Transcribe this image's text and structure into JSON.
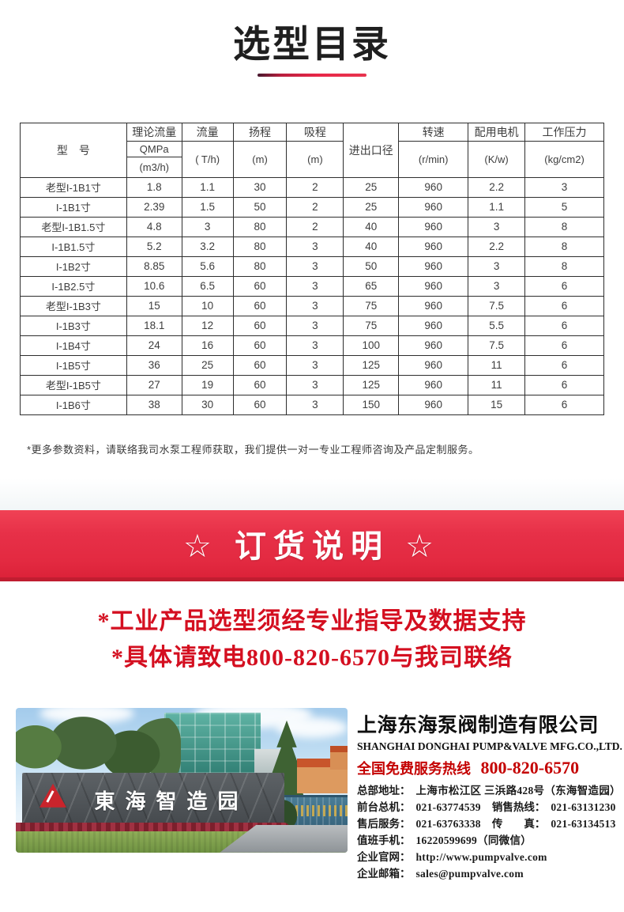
{
  "page": {
    "title": "选型目录"
  },
  "colors": {
    "banner_red": "#e32a41",
    "banner_shadow_red": "#c01d30",
    "slogan_red": "#d40f20",
    "hotline_red": "#c40000",
    "underline_red": "#e82748",
    "logo_red": "#c9242c"
  },
  "table": {
    "headers": {
      "model": "型　号",
      "theoretical_flow": "理论流量",
      "theoretical_flow_unit1": "QMPa",
      "theoretical_flow_unit2": "(m3/h)",
      "flow": "流量",
      "flow_unit": "( T/h)",
      "head": "扬程",
      "head_unit": "(m)",
      "suction": "吸程",
      "suction_unit": "(m)",
      "port_diameter": "进出口径",
      "speed": "转速",
      "speed_unit": "(r/min)",
      "motor": "配用电机",
      "motor_unit": "(K/w)",
      "pressure": "工作压力",
      "pressure_unit": "(kg/cm2)"
    },
    "rows": [
      [
        "老型I-1B1寸",
        "1.8",
        "1.1",
        "30",
        "2",
        "25",
        "960",
        "2.2",
        "3"
      ],
      [
        "I-1B1寸",
        "2.39",
        "1.5",
        "50",
        "2",
        "25",
        "960",
        "1.1",
        "5"
      ],
      [
        "老型I-1B1.5寸",
        "4.8",
        "3",
        "80",
        "2",
        "40",
        "960",
        "3",
        "8"
      ],
      [
        "I-1B1.5寸",
        "5.2",
        "3.2",
        "80",
        "3",
        "40",
        "960",
        "2.2",
        "8"
      ],
      [
        "I-1B2寸",
        "8.85",
        "5.6",
        "80",
        "3",
        "50",
        "960",
        "3",
        "8"
      ],
      [
        "I-1B2.5寸",
        "10.6",
        "6.5",
        "60",
        "3",
        "65",
        "960",
        "3",
        "6"
      ],
      [
        "老型I-1B3寸",
        "15",
        "10",
        "60",
        "3",
        "75",
        "960",
        "7.5",
        "6"
      ],
      [
        "I-1B3寸",
        "18.1",
        "12",
        "60",
        "3",
        "75",
        "960",
        "5.5",
        "6"
      ],
      [
        "I-1B4寸",
        "24",
        "16",
        "60",
        "3",
        "100",
        "960",
        "7.5",
        "6"
      ],
      [
        "I-1B5寸",
        "36",
        "25",
        "60",
        "3",
        "125",
        "960",
        "11",
        "6"
      ],
      [
        "老型I-1B5寸",
        "27",
        "19",
        "60",
        "3",
        "125",
        "960",
        "11",
        "6"
      ],
      [
        "I-1B6寸",
        "38",
        "30",
        "60",
        "3",
        "150",
        "960",
        "15",
        "6"
      ]
    ]
  },
  "note": "*更多参数资料，请联络我司水泵工程师获取，我们提供一对一专业工程师咨询及产品定制服务。",
  "banner": {
    "text": "☆ 订货说明 ☆"
  },
  "slogans": [
    "*工业产品选型须经专业指导及数据支持",
    "*具体请致电800-820-6570与我司联络"
  ],
  "photo": {
    "sign_text": "東海智造园",
    "logo": "donghai-triangle-logo"
  },
  "company": {
    "name_cn": "上海东海泵阀制造有限公司",
    "name_en": "SHANGHAI DONGHAI PUMP&VALVE MFG.CO.,LTD.",
    "hotline_label": "全国免费服务热线",
    "hotline_number": "800-820-6570",
    "contact_lines": [
      [
        [
          "总部地址：",
          "上海市松江区 三浜路428号（东海智造园）"
        ]
      ],
      [
        [
          "前台总机：",
          "021-63774539"
        ],
        [
          "销售热线：",
          "021-63131230"
        ]
      ],
      [
        [
          "售后服务：",
          "021-63763338"
        ],
        [
          "传　　真：",
          "021-63134513"
        ]
      ],
      [
        [
          "值班手机：",
          "16220599699（同微信）"
        ]
      ],
      [
        [
          "企业官网：",
          "http://www.pumpvalve.com"
        ]
      ],
      [
        [
          "企业邮箱：",
          "sales@pumpvalve.com"
        ]
      ]
    ]
  }
}
